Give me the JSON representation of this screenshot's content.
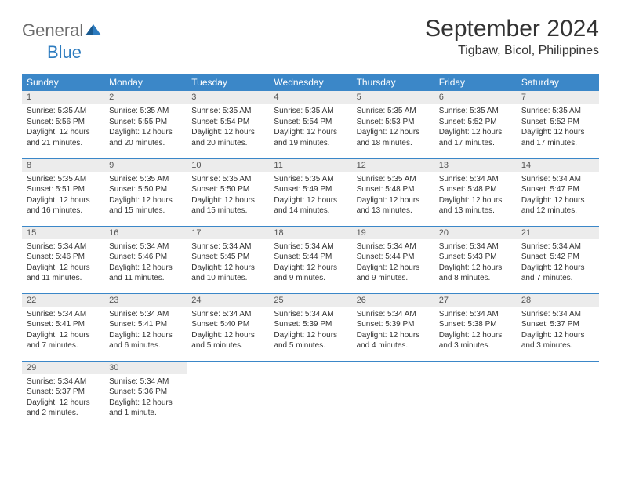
{
  "logo": {
    "text1": "General",
    "text2": "Blue"
  },
  "title": "September 2024",
  "location": "Tigbaw, Bicol, Philippines",
  "day_headers": [
    "Sunday",
    "Monday",
    "Tuesday",
    "Wednesday",
    "Thursday",
    "Friday",
    "Saturday"
  ],
  "colors": {
    "header_bg": "#3b87c8",
    "header_fg": "#ffffff",
    "daynum_bg": "#ececec",
    "row_border": "#3b87c8",
    "logo_gray": "#6c6c6c",
    "logo_blue": "#2c7bbf"
  },
  "weeks": [
    [
      {
        "n": "1",
        "sr": "Sunrise: 5:35 AM",
        "ss": "Sunset: 5:56 PM",
        "d1": "Daylight: 12 hours",
        "d2": "and 21 minutes."
      },
      {
        "n": "2",
        "sr": "Sunrise: 5:35 AM",
        "ss": "Sunset: 5:55 PM",
        "d1": "Daylight: 12 hours",
        "d2": "and 20 minutes."
      },
      {
        "n": "3",
        "sr": "Sunrise: 5:35 AM",
        "ss": "Sunset: 5:54 PM",
        "d1": "Daylight: 12 hours",
        "d2": "and 20 minutes."
      },
      {
        "n": "4",
        "sr": "Sunrise: 5:35 AM",
        "ss": "Sunset: 5:54 PM",
        "d1": "Daylight: 12 hours",
        "d2": "and 19 minutes."
      },
      {
        "n": "5",
        "sr": "Sunrise: 5:35 AM",
        "ss": "Sunset: 5:53 PM",
        "d1": "Daylight: 12 hours",
        "d2": "and 18 minutes."
      },
      {
        "n": "6",
        "sr": "Sunrise: 5:35 AM",
        "ss": "Sunset: 5:52 PM",
        "d1": "Daylight: 12 hours",
        "d2": "and 17 minutes."
      },
      {
        "n": "7",
        "sr": "Sunrise: 5:35 AM",
        "ss": "Sunset: 5:52 PM",
        "d1": "Daylight: 12 hours",
        "d2": "and 17 minutes."
      }
    ],
    [
      {
        "n": "8",
        "sr": "Sunrise: 5:35 AM",
        "ss": "Sunset: 5:51 PM",
        "d1": "Daylight: 12 hours",
        "d2": "and 16 minutes."
      },
      {
        "n": "9",
        "sr": "Sunrise: 5:35 AM",
        "ss": "Sunset: 5:50 PM",
        "d1": "Daylight: 12 hours",
        "d2": "and 15 minutes."
      },
      {
        "n": "10",
        "sr": "Sunrise: 5:35 AM",
        "ss": "Sunset: 5:50 PM",
        "d1": "Daylight: 12 hours",
        "d2": "and 15 minutes."
      },
      {
        "n": "11",
        "sr": "Sunrise: 5:35 AM",
        "ss": "Sunset: 5:49 PM",
        "d1": "Daylight: 12 hours",
        "d2": "and 14 minutes."
      },
      {
        "n": "12",
        "sr": "Sunrise: 5:35 AM",
        "ss": "Sunset: 5:48 PM",
        "d1": "Daylight: 12 hours",
        "d2": "and 13 minutes."
      },
      {
        "n": "13",
        "sr": "Sunrise: 5:34 AM",
        "ss": "Sunset: 5:48 PM",
        "d1": "Daylight: 12 hours",
        "d2": "and 13 minutes."
      },
      {
        "n": "14",
        "sr": "Sunrise: 5:34 AM",
        "ss": "Sunset: 5:47 PM",
        "d1": "Daylight: 12 hours",
        "d2": "and 12 minutes."
      }
    ],
    [
      {
        "n": "15",
        "sr": "Sunrise: 5:34 AM",
        "ss": "Sunset: 5:46 PM",
        "d1": "Daylight: 12 hours",
        "d2": "and 11 minutes."
      },
      {
        "n": "16",
        "sr": "Sunrise: 5:34 AM",
        "ss": "Sunset: 5:46 PM",
        "d1": "Daylight: 12 hours",
        "d2": "and 11 minutes."
      },
      {
        "n": "17",
        "sr": "Sunrise: 5:34 AM",
        "ss": "Sunset: 5:45 PM",
        "d1": "Daylight: 12 hours",
        "d2": "and 10 minutes."
      },
      {
        "n": "18",
        "sr": "Sunrise: 5:34 AM",
        "ss": "Sunset: 5:44 PM",
        "d1": "Daylight: 12 hours",
        "d2": "and 9 minutes."
      },
      {
        "n": "19",
        "sr": "Sunrise: 5:34 AM",
        "ss": "Sunset: 5:44 PM",
        "d1": "Daylight: 12 hours",
        "d2": "and 9 minutes."
      },
      {
        "n": "20",
        "sr": "Sunrise: 5:34 AM",
        "ss": "Sunset: 5:43 PM",
        "d1": "Daylight: 12 hours",
        "d2": "and 8 minutes."
      },
      {
        "n": "21",
        "sr": "Sunrise: 5:34 AM",
        "ss": "Sunset: 5:42 PM",
        "d1": "Daylight: 12 hours",
        "d2": "and 7 minutes."
      }
    ],
    [
      {
        "n": "22",
        "sr": "Sunrise: 5:34 AM",
        "ss": "Sunset: 5:41 PM",
        "d1": "Daylight: 12 hours",
        "d2": "and 7 minutes."
      },
      {
        "n": "23",
        "sr": "Sunrise: 5:34 AM",
        "ss": "Sunset: 5:41 PM",
        "d1": "Daylight: 12 hours",
        "d2": "and 6 minutes."
      },
      {
        "n": "24",
        "sr": "Sunrise: 5:34 AM",
        "ss": "Sunset: 5:40 PM",
        "d1": "Daylight: 12 hours",
        "d2": "and 5 minutes."
      },
      {
        "n": "25",
        "sr": "Sunrise: 5:34 AM",
        "ss": "Sunset: 5:39 PM",
        "d1": "Daylight: 12 hours",
        "d2": "and 5 minutes."
      },
      {
        "n": "26",
        "sr": "Sunrise: 5:34 AM",
        "ss": "Sunset: 5:39 PM",
        "d1": "Daylight: 12 hours",
        "d2": "and 4 minutes."
      },
      {
        "n": "27",
        "sr": "Sunrise: 5:34 AM",
        "ss": "Sunset: 5:38 PM",
        "d1": "Daylight: 12 hours",
        "d2": "and 3 minutes."
      },
      {
        "n": "28",
        "sr": "Sunrise: 5:34 AM",
        "ss": "Sunset: 5:37 PM",
        "d1": "Daylight: 12 hours",
        "d2": "and 3 minutes."
      }
    ],
    [
      {
        "n": "29",
        "sr": "Sunrise: 5:34 AM",
        "ss": "Sunset: 5:37 PM",
        "d1": "Daylight: 12 hours",
        "d2": "and 2 minutes."
      },
      {
        "n": "30",
        "sr": "Sunrise: 5:34 AM",
        "ss": "Sunset: 5:36 PM",
        "d1": "Daylight: 12 hours",
        "d2": "and 1 minute."
      },
      null,
      null,
      null,
      null,
      null
    ]
  ]
}
